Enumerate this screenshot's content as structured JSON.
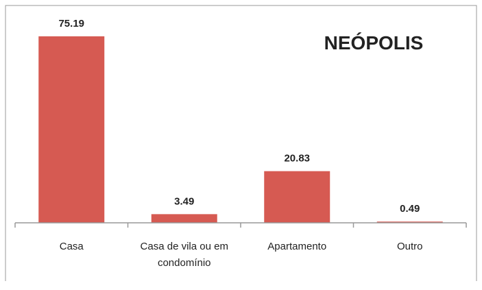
{
  "chart_data": {
    "type": "bar",
    "title": "NEÓPOLIS",
    "categories": [
      "Casa",
      "Casa de vila ou em condomínio",
      "Apartamento",
      "Outro"
    ],
    "values": [
      75.19,
      3.49,
      20.83,
      0.49
    ],
    "color": "#d65a52"
  }
}
